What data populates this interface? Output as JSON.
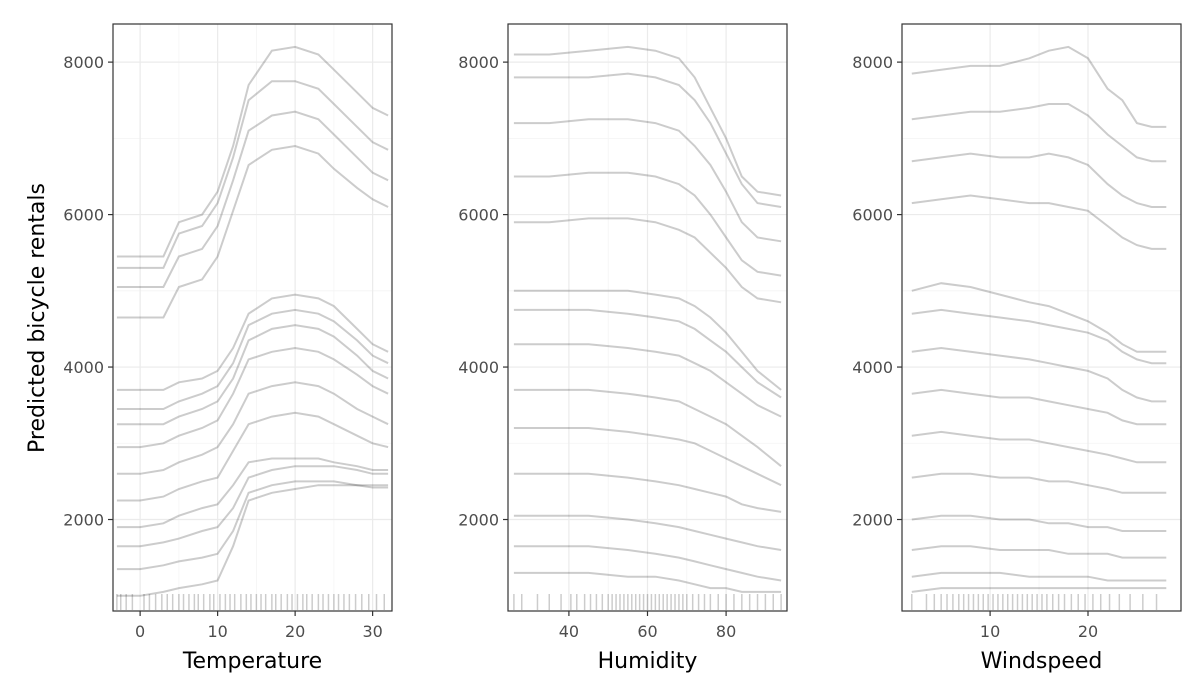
{
  "chart_data": {
    "type": "line",
    "ylabel": "Predicted bicycle rentals",
    "ylim": [
      800,
      8500
    ],
    "y_ticks": [
      2000,
      4000,
      6000,
      8000
    ],
    "grid": true,
    "series_color": "#000000",
    "panels": [
      {
        "xlabel": "Temperature",
        "xlim": [
          -3.5,
          32.5
        ],
        "x_ticks": [
          0,
          10,
          20,
          30
        ],
        "x": [
          -3,
          0,
          3,
          5,
          8,
          10,
          12,
          14,
          17,
          20,
          23,
          25,
          28,
          30,
          32
        ],
        "curves": [
          {
            "name": "",
            "values": [
              5450,
              5450,
              5450,
              5900,
              6000,
              6300,
              6900,
              7700,
              8150,
              8200,
              8100,
              7900,
              7600,
              7400,
              7300
            ]
          },
          {
            "name": "",
            "values": [
              5300,
              5300,
              5300,
              5750,
              5850,
              6150,
              6750,
              7500,
              7750,
              7750,
              7650,
              7450,
              7150,
              6950,
              6850
            ]
          },
          {
            "name": "",
            "values": [
              5050,
              5050,
              5050,
              5450,
              5550,
              5850,
              6450,
              7100,
              7300,
              7350,
              7250,
              7050,
              6750,
              6550,
              6450
            ]
          },
          {
            "name": "",
            "values": [
              4650,
              4650,
              4650,
              5050,
              5150,
              5450,
              6050,
              6650,
              6850,
              6900,
              6800,
              6600,
              6350,
              6200,
              6100
            ]
          },
          {
            "name": "",
            "values": [
              3700,
              3700,
              3700,
              3800,
              3850,
              3950,
              4250,
              4700,
              4900,
              4950,
              4900,
              4800,
              4500,
              4300,
              4200
            ]
          },
          {
            "name": "",
            "values": [
              3450,
              3450,
              3450,
              3550,
              3650,
              3750,
              4050,
              4550,
              4700,
              4750,
              4700,
              4600,
              4350,
              4150,
              4050
            ]
          },
          {
            "name": "",
            "values": [
              3250,
              3250,
              3250,
              3350,
              3450,
              3550,
              3850,
              4350,
              4500,
              4550,
              4500,
              4400,
              4150,
              3950,
              3850
            ]
          },
          {
            "name": "",
            "values": [
              2950,
              2950,
              3000,
              3100,
              3200,
              3300,
              3650,
              4100,
              4200,
              4250,
              4200,
              4100,
              3900,
              3750,
              3650
            ]
          },
          {
            "name": "",
            "values": [
              2600,
              2600,
              2650,
              2750,
              2850,
              2950,
              3250,
              3650,
              3750,
              3800,
              3750,
              3650,
              3450,
              3350,
              3250
            ]
          },
          {
            "name": "",
            "values": [
              2250,
              2250,
              2300,
              2400,
              2500,
              2550,
              2900,
              3250,
              3350,
              3400,
              3350,
              3250,
              3100,
              3000,
              2950
            ]
          },
          {
            "name": "",
            "values": [
              1900,
              1900,
              1950,
              2050,
              2150,
              2200,
              2450,
              2750,
              2800,
              2800,
              2800,
              2750,
              2700,
              2650,
              2650
            ]
          },
          {
            "name": "",
            "values": [
              1650,
              1650,
              1700,
              1750,
              1850,
              1900,
              2150,
              2550,
              2650,
              2700,
              2700,
              2700,
              2650,
              2600,
              2600
            ]
          },
          {
            "name": "",
            "values": [
              1350,
              1350,
              1400,
              1450,
              1500,
              1550,
              1850,
              2350,
              2450,
              2500,
              2500,
              2500,
              2450,
              2450,
              2450
            ]
          },
          {
            "name": "",
            "values": [
              1000,
              1000,
              1050,
              1100,
              1150,
              1200,
              1650,
              2250,
              2350,
              2400,
              2450,
              2450,
              2450,
              2420,
              2420
            ]
          }
        ],
        "rug": [
          -3,
          -2.5,
          -1.8,
          -1,
          0.5,
          1.2,
          2,
          2.8,
          3.5,
          4.2,
          5,
          5.6,
          6.3,
          7,
          7.5,
          8.2,
          9,
          9.5,
          10.3,
          11,
          11.6,
          12.2,
          13,
          13.7,
          14.3,
          15,
          15.6,
          16.2,
          17,
          17.5,
          18.2,
          19,
          19.6,
          20.3,
          21,
          21.5,
          22.2,
          23,
          23.6,
          24.3,
          25,
          25.6,
          26.3,
          27,
          27.8,
          28.6,
          29.5,
          30.5,
          31.5
        ]
      },
      {
        "xlabel": "Humidity",
        "xlim": [
          24.5,
          95.5
        ],
        "x_ticks": [
          40,
          60,
          80
        ],
        "x": [
          26,
          35,
          45,
          55,
          62,
          68,
          72,
          76,
          80,
          84,
          88,
          94
        ],
        "curves": [
          {
            "name": "",
            "values": [
              8100,
              8100,
              8150,
              8200,
              8150,
              8050,
              7800,
              7400,
              7000,
              6500,
              6300,
              6250
            ]
          },
          {
            "name": "",
            "values": [
              7800,
              7800,
              7800,
              7850,
              7800,
              7700,
              7500,
              7200,
              6800,
              6400,
              6150,
              6100
            ]
          },
          {
            "name": "",
            "values": [
              7200,
              7200,
              7250,
              7250,
              7200,
              7100,
              6900,
              6650,
              6300,
              5900,
              5700,
              5650
            ]
          },
          {
            "name": "",
            "values": [
              6500,
              6500,
              6550,
              6550,
              6500,
              6400,
              6250,
              6000,
              5700,
              5400,
              5250,
              5200
            ]
          },
          {
            "name": "",
            "values": [
              5900,
              5900,
              5950,
              5950,
              5900,
              5800,
              5700,
              5500,
              5300,
              5050,
              4900,
              4850
            ]
          },
          {
            "name": "",
            "values": [
              5000,
              5000,
              5000,
              5000,
              4950,
              4900,
              4800,
              4650,
              4450,
              4200,
              3950,
              3700
            ]
          },
          {
            "name": "",
            "values": [
              4750,
              4750,
              4750,
              4700,
              4650,
              4600,
              4500,
              4350,
              4200,
              4000,
              3800,
              3600
            ]
          },
          {
            "name": "",
            "values": [
              4300,
              4300,
              4300,
              4250,
              4200,
              4150,
              4050,
              3950,
              3800,
              3650,
              3500,
              3350
            ]
          },
          {
            "name": "",
            "values": [
              3700,
              3700,
              3700,
              3650,
              3600,
              3550,
              3450,
              3350,
              3250,
              3100,
              2950,
              2700
            ]
          },
          {
            "name": "",
            "values": [
              3200,
              3200,
              3200,
              3150,
              3100,
              3050,
              3000,
              2900,
              2800,
              2700,
              2600,
              2450
            ]
          },
          {
            "name": "",
            "values": [
              2600,
              2600,
              2600,
              2550,
              2500,
              2450,
              2400,
              2350,
              2300,
              2200,
              2150,
              2100
            ]
          },
          {
            "name": "",
            "values": [
              2050,
              2050,
              2050,
              2000,
              1950,
              1900,
              1850,
              1800,
              1750,
              1700,
              1650,
              1600
            ]
          },
          {
            "name": "",
            "values": [
              1650,
              1650,
              1650,
              1600,
              1550,
              1500,
              1450,
              1400,
              1350,
              1300,
              1250,
              1200
            ]
          },
          {
            "name": "",
            "values": [
              1300,
              1300,
              1300,
              1250,
              1250,
              1200,
              1150,
              1100,
              1100,
              1050,
              1050,
              1050
            ]
          }
        ],
        "rug": [
          26,
          28,
          32,
          35,
          38,
          40.5,
          42,
          44,
          45.5,
          47,
          48.5,
          50,
          51,
          52,
          53,
          54,
          55,
          56,
          57,
          58,
          59,
          60,
          61,
          62,
          63,
          64,
          65,
          66,
          67,
          68,
          69,
          70,
          71.5,
          73,
          74.5,
          76,
          78,
          80,
          82,
          84,
          86,
          88,
          90,
          92,
          94
        ]
      },
      {
        "xlabel": "Windspeed",
        "xlim": [
          1,
          29.5
        ],
        "x_ticks": [
          10,
          20
        ],
        "x": [
          2,
          5,
          8,
          11,
          14,
          16,
          18,
          20,
          22,
          23.5,
          25,
          26.5,
          28
        ],
        "curves": [
          {
            "name": "",
            "values": [
              7850,
              7900,
              7950,
              7950,
              8050,
              8150,
              8200,
              8050,
              7650,
              7500,
              7200,
              7150,
              7150
            ]
          },
          {
            "name": "",
            "values": [
              7250,
              7300,
              7350,
              7350,
              7400,
              7450,
              7450,
              7300,
              7050,
              6900,
              6750,
              6700,
              6700
            ]
          },
          {
            "name": "",
            "values": [
              6700,
              6750,
              6800,
              6750,
              6750,
              6800,
              6750,
              6650,
              6400,
              6250,
              6150,
              6100,
              6100
            ]
          },
          {
            "name": "",
            "values": [
              6150,
              6200,
              6250,
              6200,
              6150,
              6150,
              6100,
              6050,
              5850,
              5700,
              5600,
              5550,
              5550
            ]
          },
          {
            "name": "",
            "values": [
              5000,
              5100,
              5050,
              4950,
              4850,
              4800,
              4700,
              4600,
              4450,
              4300,
              4200,
              4200,
              4200
            ]
          },
          {
            "name": "",
            "values": [
              4700,
              4750,
              4700,
              4650,
              4600,
              4550,
              4500,
              4450,
              4350,
              4200,
              4100,
              4050,
              4050
            ]
          },
          {
            "name": "",
            "values": [
              4200,
              4250,
              4200,
              4150,
              4100,
              4050,
              4000,
              3950,
              3850,
              3700,
              3600,
              3550,
              3550
            ]
          },
          {
            "name": "",
            "values": [
              3650,
              3700,
              3650,
              3600,
              3600,
              3550,
              3500,
              3450,
              3400,
              3300,
              3250,
              3250,
              3250
            ]
          },
          {
            "name": "",
            "values": [
              3100,
              3150,
              3100,
              3050,
              3050,
              3000,
              2950,
              2900,
              2850,
              2800,
              2750,
              2750,
              2750
            ]
          },
          {
            "name": "",
            "values": [
              2550,
              2600,
              2600,
              2550,
              2550,
              2500,
              2500,
              2450,
              2400,
              2350,
              2350,
              2350,
              2350
            ]
          },
          {
            "name": "",
            "values": [
              2000,
              2050,
              2050,
              2000,
              2000,
              1950,
              1950,
              1900,
              1900,
              1850,
              1850,
              1850,
              1850
            ]
          },
          {
            "name": "",
            "values": [
              1600,
              1650,
              1650,
              1600,
              1600,
              1600,
              1550,
              1550,
              1550,
              1500,
              1500,
              1500,
              1500
            ]
          },
          {
            "name": "",
            "values": [
              1250,
              1300,
              1300,
              1300,
              1250,
              1250,
              1250,
              1250,
              1200,
              1200,
              1200,
              1200,
              1200
            ]
          },
          {
            "name": "",
            "values": [
              1050,
              1100,
              1100,
              1100,
              1100,
              1100,
              1100,
              1100,
              1100,
              1100,
              1100,
              1100,
              1100
            ]
          }
        ],
        "rug": [
          2,
          3.5,
          4.3,
          5,
          5.6,
          6.2,
          6.8,
          7.3,
          7.8,
          8.3,
          8.8,
          9.3,
          9.8,
          10.3,
          10.8,
          11.3,
          11.8,
          12.3,
          12.8,
          13.3,
          13.8,
          14.3,
          14.8,
          15.3,
          15.8,
          16.4,
          17,
          17.6,
          18.3,
          19,
          19.7,
          20.5,
          21.3,
          22.2,
          23.2,
          24.3,
          25.6,
          27
        ]
      }
    ]
  }
}
